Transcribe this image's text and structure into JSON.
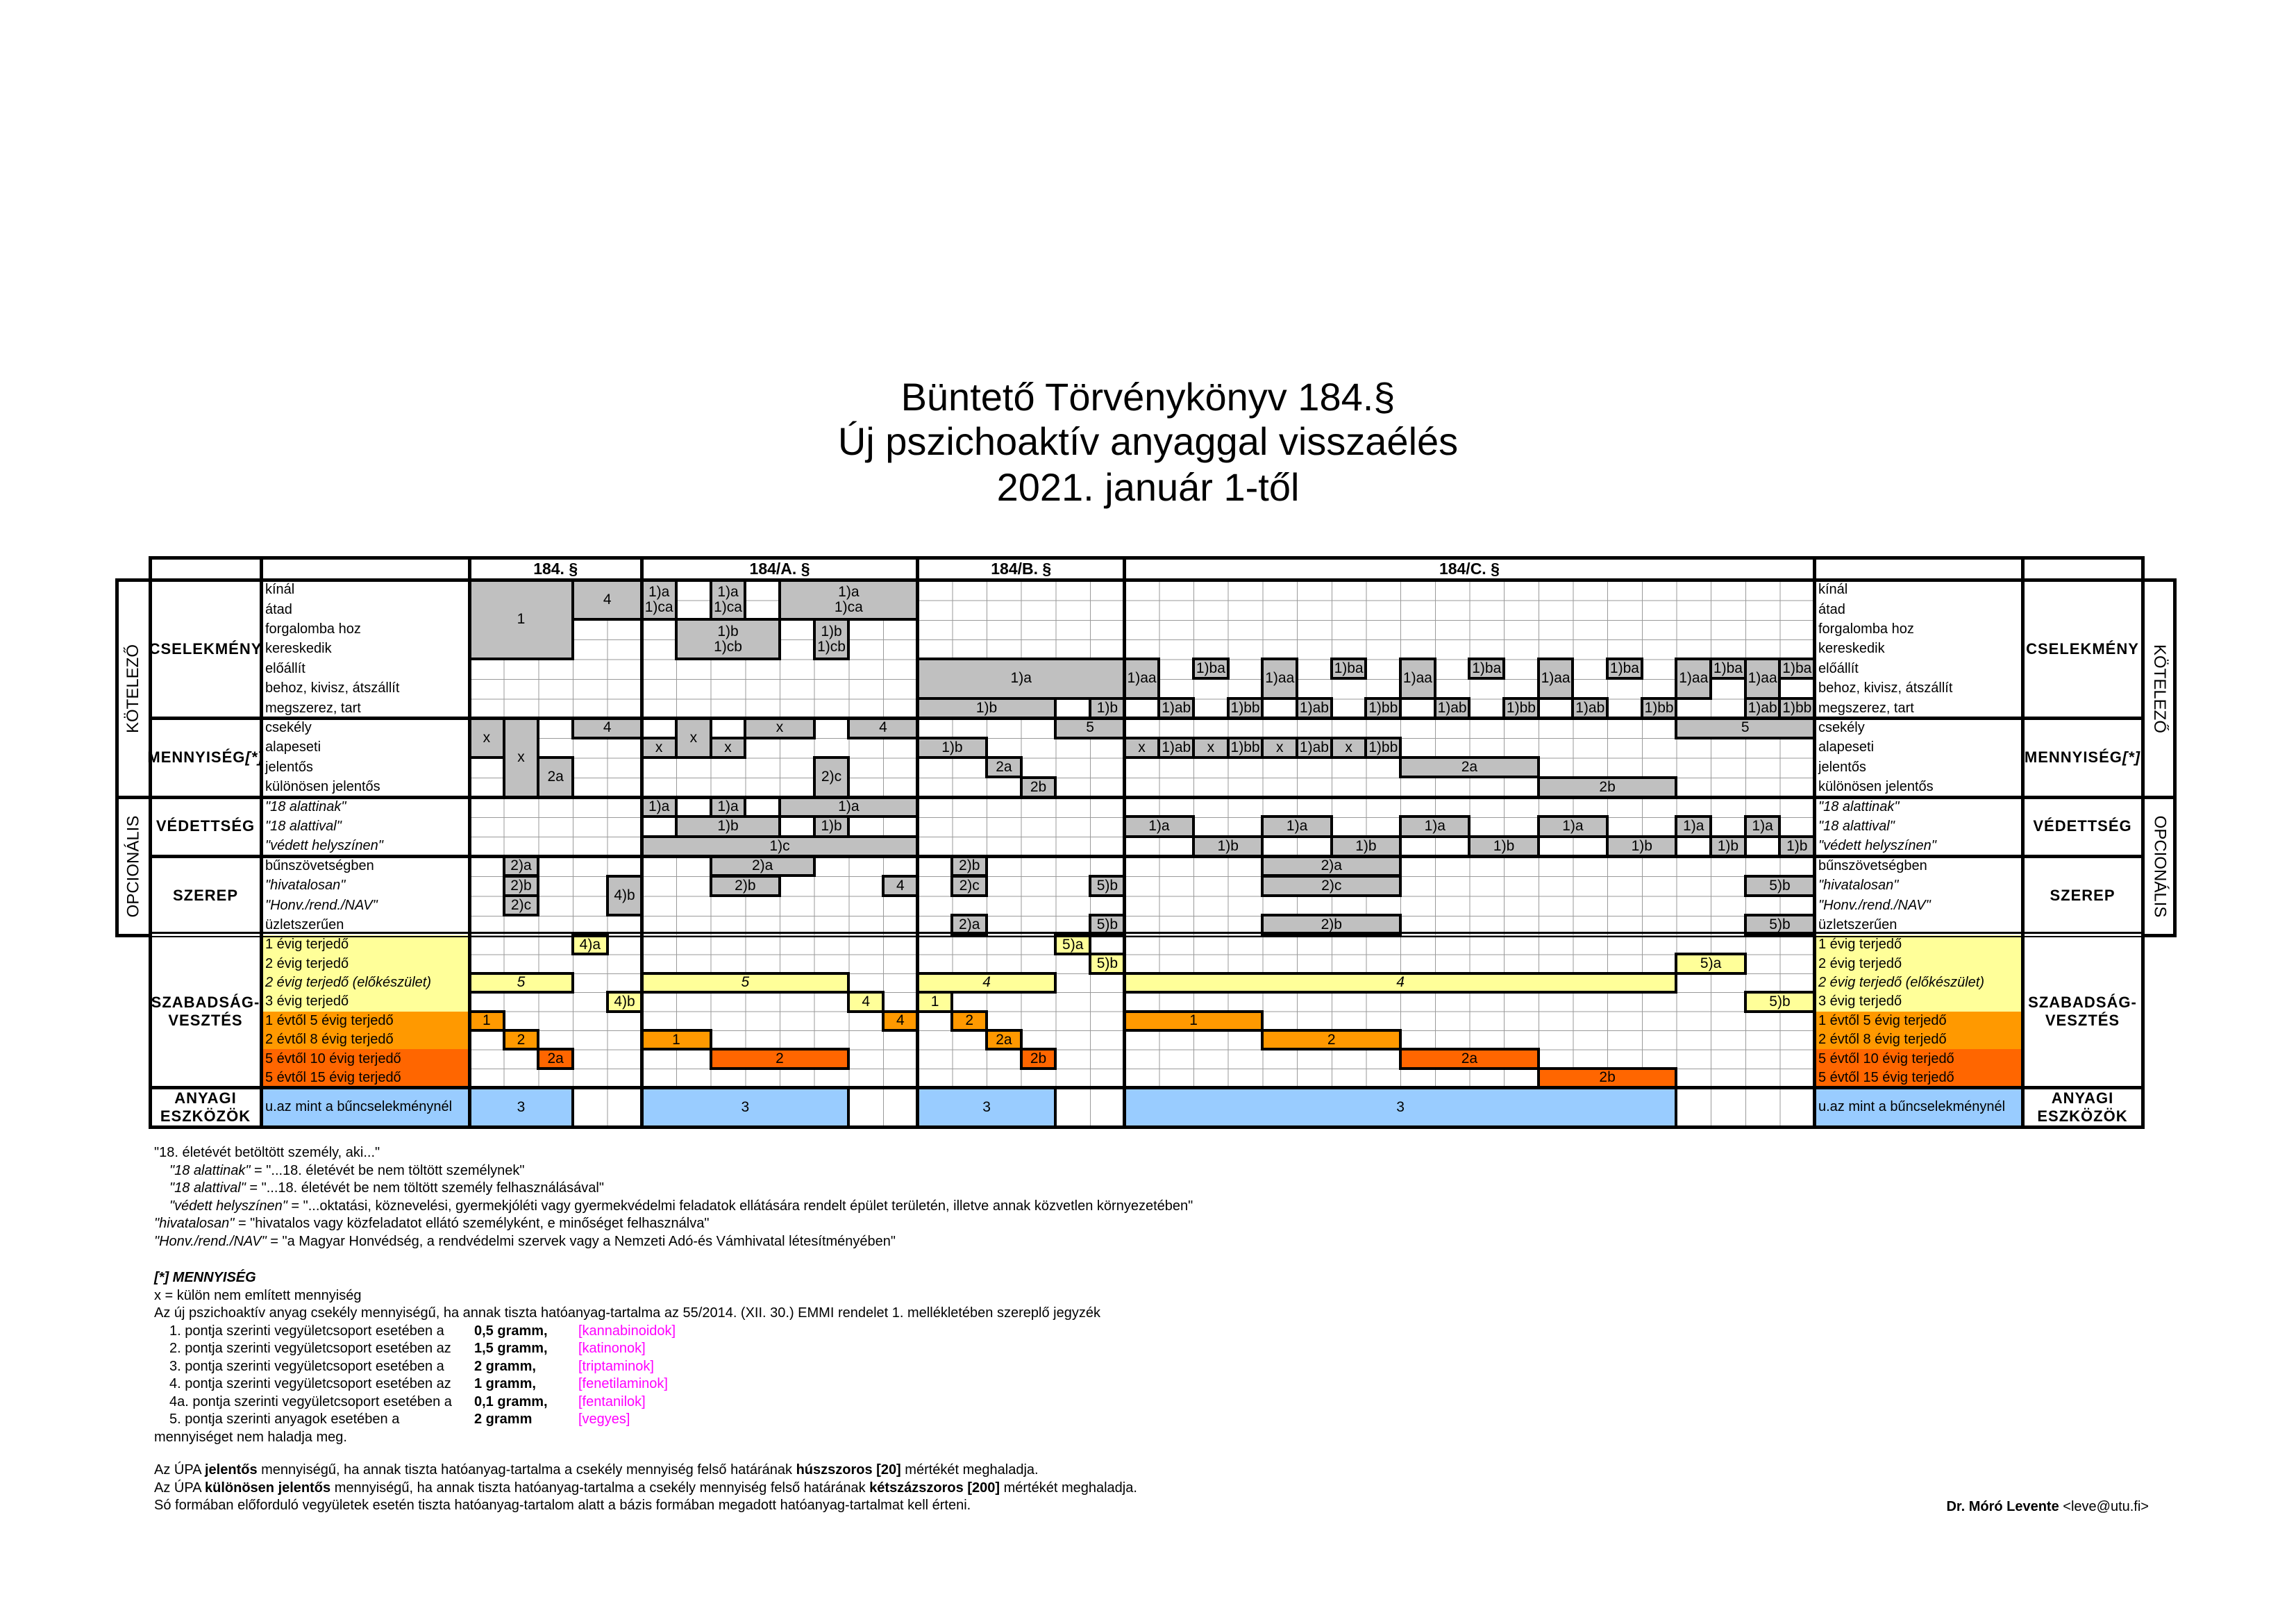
{
  "title": [
    "Büntető Törvénykönyv 184.§",
    "Új pszichoaktív anyaggal visszaélés",
    "2021. január 1-től"
  ],
  "sections": [
    {
      "name": "184. §",
      "cols": 5
    },
    {
      "name": "184/A. §",
      "cols": 8
    },
    {
      "name": "184/B. §",
      "cols": 6
    },
    {
      "name": "184/C. §",
      "cols": 20
    }
  ],
  "side_labels": {
    "mandatory": "KÖTELEZŐ",
    "optional": "OPCIONÁLIS"
  },
  "groups": [
    {
      "label": "CSELEKMÉNY",
      "suffix": "",
      "rows": [
        {
          "t": "kínál"
        },
        {
          "t": "átad"
        },
        {
          "t": "forgalomba hoz"
        },
        {
          "t": "kereskedik"
        },
        {
          "t": "előállít"
        },
        {
          "t": "behoz, kivisz, átszállít"
        },
        {
          "t": "megszerez, tart"
        }
      ]
    },
    {
      "label": "MENNYISÉG ",
      "suffix": "[*]",
      "rows": [
        {
          "t": "csekély"
        },
        {
          "t": "alapeseti"
        },
        {
          "t": "jelentős"
        },
        {
          "t": "különösen jelentős"
        }
      ]
    },
    {
      "label": "VÉDETTSÉG",
      "suffix": "",
      "rows": [
        {
          "t": "\"18 alattinak\"",
          "i": true
        },
        {
          "t": "\"18 alattival\"",
          "i": true
        },
        {
          "t": "\"védett helyszínen\"",
          "i": true
        }
      ]
    },
    {
      "label": "SZEREP",
      "suffix": "",
      "rows": [
        {
          "t": "bűnszövetségben"
        },
        {
          "t": "\"hivatalosan\"",
          "i": true
        },
        {
          "t": "\"Honv./rend./NAV\"",
          "i": true
        },
        {
          "t": "üzletszerűen"
        }
      ]
    },
    {
      "label": "SZABADSÁG-\nVESZTÉS",
      "suffix": "",
      "rows": [
        {
          "t": "1 évig terjedő",
          "c": "y"
        },
        {
          "t": "2 évig terjedő",
          "c": "y"
        },
        {
          "t": "2 évig terjedő (előkészület)",
          "c": "y",
          "i": true
        },
        {
          "t": "3 évig terjedő",
          "c": "y"
        },
        {
          "t": "1 évtől 5 évig terjedő",
          "c": "o"
        },
        {
          "t": "2 évtől 8 évig terjedő",
          "c": "o"
        },
        {
          "t": "5 évtől 10 évig terjedő",
          "c": "d"
        },
        {
          "t": "5 évtől 15 évig terjedő",
          "c": "d"
        }
      ]
    },
    {
      "label": "ANYAGI\nESZKÖZÖK",
      "suffix": "",
      "rows": [
        {
          "t": "u.az mint a bűncselekménynél",
          "c": "b"
        }
      ]
    }
  ],
  "colors": {
    "g": "#c0c0c0",
    "y": "#ffff99",
    "o": "#ff9900",
    "d": "#ff6600",
    "b": "#99ccff",
    "bracket": "#ff00ff"
  },
  "blocks": [
    [
      [
        "1",
        0,
        0,
        3,
        4,
        "g"
      ],
      [
        "4",
        3,
        0,
        2,
        2,
        "g"
      ],
      [
        "x",
        0,
        7,
        1,
        2,
        "g"
      ],
      [
        "x",
        1,
        7,
        1,
        4,
        "g"
      ],
      [
        "4",
        3,
        7,
        2,
        1,
        "g"
      ],
      [
        "2a",
        2,
        9,
        1,
        2,
        "g"
      ],
      [
        "2)a",
        1,
        14,
        1,
        1,
        "g"
      ],
      [
        "2)b",
        1,
        15,
        1,
        1,
        "g"
      ],
      [
        "2)c",
        1,
        16,
        1,
        1,
        "g"
      ],
      [
        "4)b",
        4,
        15,
        1,
        2,
        "g"
      ],
      [
        "4)a",
        3,
        18,
        1,
        1,
        "y"
      ],
      [
        "5",
        0,
        20,
        3,
        1,
        "yi"
      ],
      [
        "4)b",
        4,
        21,
        1,
        1,
        "y"
      ],
      [
        "1",
        0,
        22,
        1,
        1,
        "o"
      ],
      [
        "2",
        1,
        23,
        1,
        1,
        "o"
      ],
      [
        "2a",
        2,
        24,
        1,
        1,
        "d"
      ],
      [
        "3",
        0,
        26,
        3,
        1,
        "b"
      ]
    ],
    [
      [
        "1)a\n1)ca",
        0,
        0,
        1,
        2,
        "g"
      ],
      [
        "1)a\n1)ca",
        2,
        0,
        1,
        2,
        "g"
      ],
      [
        "1)a\n1)ca",
        4,
        0,
        4,
        2,
        "g"
      ],
      [
        "1)b\n1)cb",
        1,
        2,
        3,
        2,
        "g"
      ],
      [
        "1)b\n1)cb",
        5,
        2,
        1,
        2,
        "g"
      ],
      [
        "x",
        0,
        8,
        1,
        1,
        "g"
      ],
      [
        "x",
        1,
        7,
        1,
        2,
        "g"
      ],
      [
        "x",
        2,
        8,
        1,
        1,
        "g"
      ],
      [
        "x",
        3,
        7,
        2,
        1,
        "g"
      ],
      [
        "4",
        6,
        7,
        2,
        1,
        "g"
      ],
      [
        "2)c",
        5,
        9,
        1,
        2,
        "g"
      ],
      [
        "1)a",
        0,
        11,
        1,
        1,
        "g"
      ],
      [
        "1)a",
        2,
        11,
        1,
        1,
        "g"
      ],
      [
        "1)a",
        4,
        11,
        4,
        1,
        "g"
      ],
      [
        "1)b",
        1,
        12,
        3,
        1,
        "g"
      ],
      [
        "1)b",
        5,
        12,
        1,
        1,
        "g"
      ],
      [
        "1)c",
        0,
        13,
        8,
        1,
        "g"
      ],
      [
        "2)a",
        2,
        14,
        3,
        1,
        "g"
      ],
      [
        "2)b",
        2,
        15,
        2,
        1,
        "g"
      ],
      [
        "4",
        7,
        15,
        1,
        1,
        "g"
      ],
      [
        "5",
        0,
        20,
        6,
        1,
        "yi"
      ],
      [
        "4",
        6,
        21,
        1,
        1,
        "y"
      ],
      [
        "4",
        7,
        22,
        1,
        1,
        "o"
      ],
      [
        "1",
        0,
        23,
        2,
        1,
        "o"
      ],
      [
        "2",
        2,
        24,
        4,
        1,
        "d"
      ],
      [
        "3",
        0,
        26,
        6,
        1,
        "b"
      ]
    ],
    [
      [
        "1)a",
        0,
        4,
        6,
        2,
        "g"
      ],
      [
        "1)b",
        0,
        6,
        4,
        1,
        "g"
      ],
      [
        "1)b",
        5,
        6,
        1,
        1,
        "g"
      ],
      [
        "5",
        4,
        7,
        2,
        1,
        "g"
      ],
      [
        "1)b",
        0,
        8,
        2,
        1,
        "g"
      ],
      [
        "2a",
        2,
        9,
        1,
        1,
        "g"
      ],
      [
        "2b",
        3,
        10,
        1,
        1,
        "g"
      ],
      [
        "2)b",
        1,
        14,
        1,
        1,
        "g"
      ],
      [
        "2)c",
        1,
        15,
        1,
        1,
        "g"
      ],
      [
        "5)b",
        5,
        15,
        1,
        1,
        "g"
      ],
      [
        "2)a",
        1,
        17,
        1,
        1,
        "g"
      ],
      [
        "5)b",
        5,
        17,
        1,
        1,
        "g"
      ],
      [
        "5)a",
        4,
        18,
        1,
        1,
        "y"
      ],
      [
        "5)b",
        5,
        19,
        1,
        1,
        "y"
      ],
      [
        "4",
        0,
        20,
        4,
        1,
        "yi"
      ],
      [
        "1",
        0,
        21,
        1,
        1,
        "y"
      ],
      [
        "2",
        1,
        22,
        1,
        1,
        "o"
      ],
      [
        "2a",
        2,
        23,
        1,
        1,
        "o"
      ],
      [
        "2b",
        3,
        24,
        1,
        1,
        "d"
      ],
      [
        "3",
        0,
        26,
        4,
        1,
        "b"
      ]
    ],
    [
      [
        "1)aa",
        0,
        4,
        1,
        2,
        "g"
      ],
      [
        "1)ba",
        2,
        4,
        1,
        1,
        "g"
      ],
      [
        "1)aa",
        4,
        4,
        1,
        2,
        "g"
      ],
      [
        "1)ba",
        6,
        4,
        1,
        1,
        "g"
      ],
      [
        "1)aa",
        8,
        4,
        1,
        2,
        "g"
      ],
      [
        "1)ba",
        10,
        4,
        1,
        1,
        "g"
      ],
      [
        "1)aa",
        12,
        4,
        1,
        2,
        "g"
      ],
      [
        "1)ba",
        14,
        4,
        1,
        1,
        "g"
      ],
      [
        "1)aa",
        16,
        4,
        1,
        2,
        "g"
      ],
      [
        "1)ba",
        17,
        4,
        1,
        1,
        "g"
      ],
      [
        "1)aa",
        18,
        4,
        1,
        2,
        "g"
      ],
      [
        "1)ba",
        19,
        4,
        1,
        1,
        "g"
      ],
      [
        "1)ab",
        1,
        6,
        1,
        1,
        "g"
      ],
      [
        "1)bb",
        3,
        6,
        1,
        1,
        "g"
      ],
      [
        "1)ab",
        5,
        6,
        1,
        1,
        "g"
      ],
      [
        "1)bb",
        7,
        6,
        1,
        1,
        "g"
      ],
      [
        "1)ab",
        9,
        6,
        1,
        1,
        "g"
      ],
      [
        "1)bb",
        11,
        6,
        1,
        1,
        "g"
      ],
      [
        "1)ab",
        13,
        6,
        1,
        1,
        "g"
      ],
      [
        "1)bb",
        15,
        6,
        1,
        1,
        "g"
      ],
      [
        "1)ab",
        18,
        6,
        1,
        1,
        "g"
      ],
      [
        "1)bb",
        19,
        6,
        1,
        1,
        "g"
      ],
      [
        "5",
        16,
        7,
        4,
        1,
        "g"
      ],
      [
        "x",
        0,
        8,
        1,
        1,
        "g"
      ],
      [
        "1)ab",
        1,
        8,
        1,
        1,
        "g"
      ],
      [
        "x",
        2,
        8,
        1,
        1,
        "g"
      ],
      [
        "1)bb",
        3,
        8,
        1,
        1,
        "g"
      ],
      [
        "x",
        4,
        8,
        1,
        1,
        "g"
      ],
      [
        "1)ab",
        5,
        8,
        1,
        1,
        "g"
      ],
      [
        "x",
        6,
        8,
        1,
        1,
        "g"
      ],
      [
        "1)bb",
        7,
        8,
        1,
        1,
        "g"
      ],
      [
        "2a",
        8,
        9,
        4,
        1,
        "g"
      ],
      [
        "2b",
        12,
        10,
        4,
        1,
        "g"
      ],
      [
        "1)a",
        0,
        12,
        2,
        1,
        "g"
      ],
      [
        "1)b",
        2,
        13,
        2,
        1,
        "g"
      ],
      [
        "1)a",
        4,
        12,
        2,
        1,
        "g"
      ],
      [
        "1)b",
        6,
        13,
        2,
        1,
        "g"
      ],
      [
        "1)a",
        8,
        12,
        2,
        1,
        "g"
      ],
      [
        "1)b",
        10,
        13,
        2,
        1,
        "g"
      ],
      [
        "1)a",
        12,
        12,
        2,
        1,
        "g"
      ],
      [
        "1)b",
        14,
        13,
        2,
        1,
        "g"
      ],
      [
        "1)a",
        16,
        12,
        1,
        1,
        "g"
      ],
      [
        "1)b",
        17,
        13,
        1,
        1,
        "g"
      ],
      [
        "1)a",
        18,
        12,
        1,
        1,
        "g"
      ],
      [
        "1)b",
        19,
        13,
        1,
        1,
        "g"
      ],
      [
        "2)a",
        4,
        14,
        4,
        1,
        "g"
      ],
      [
        "2)c",
        4,
        15,
        4,
        1,
        "g"
      ],
      [
        "2)b",
        4,
        17,
        4,
        1,
        "g"
      ],
      [
        "5)b",
        18,
        15,
        2,
        1,
        "g"
      ],
      [
        "5)b",
        18,
        17,
        2,
        1,
        "g"
      ],
      [
        "5)a",
        16,
        19,
        2,
        1,
        "y"
      ],
      [
        "4",
        0,
        20,
        16,
        1,
        "yi"
      ],
      [
        "5)b",
        18,
        21,
        2,
        1,
        "y"
      ],
      [
        "1",
        0,
        22,
        4,
        1,
        "o"
      ],
      [
        "2",
        4,
        23,
        4,
        1,
        "o"
      ],
      [
        "2a",
        8,
        24,
        4,
        1,
        "d"
      ],
      [
        "2b",
        12,
        25,
        4,
        1,
        "d"
      ],
      [
        "3",
        0,
        26,
        16,
        1,
        "b"
      ]
    ]
  ],
  "notes": {
    "defs": [
      {
        "indent": false,
        "seg": [
          {
            "t": "\"18. életévét betöltött személy, aki...\""
          }
        ]
      },
      {
        "indent": true,
        "seg": [
          {
            "t": "\"18 alattinak\"",
            "s": "it"
          },
          {
            "t": " = \"...18. életévét be nem töltött személynek\""
          }
        ]
      },
      {
        "indent": true,
        "seg": [
          {
            "t": "\"18 alattival\"",
            "s": "it"
          },
          {
            "t": " = \"...18. életévét be nem töltött személy felhasználásával\""
          }
        ]
      },
      {
        "indent": true,
        "seg": [
          {
            "t": "\"védett helyszínen\"",
            "s": "it"
          },
          {
            "t": " = \"...oktatási, köznevelési, gyermekjóléti vagy gyermekvédelmi feladatok ellátására rendelt épület területén, illetve annak közvetlen környezetében\""
          }
        ]
      },
      {
        "indent": false,
        "seg": [
          {
            "t": "\"hivatalosan\"",
            "s": "it"
          },
          {
            "t": " = \"hivatalos vagy közfeladatot ellátó személyként, e minőséget felhasználva\""
          }
        ]
      },
      {
        "indent": false,
        "seg": [
          {
            "t": "\"Honv./rend./NAV\"",
            "s": "it"
          },
          {
            "t": " = \"a Magyar Honvédség, a rendvédelmi szervek vagy a Nemzeti Adó-és Vámhivatal létesítményében\""
          }
        ]
      }
    ],
    "quantity": {
      "heading": "[*] MENNYISÉG",
      "x_note": "x = külön nem említett mennyiség",
      "intro": "Az új pszichoaktív anyag csekély mennyiségű, ha annak tiszta hatóanyag-tartalma az 55/2014. (XII. 30.) EMMI rendelet 1. mellékletében szereplő jegyzék",
      "items": [
        {
          "text": "1. pontja szerinti vegyületcsoport esetében a",
          "amount": "0,5 gramm,",
          "group": "[kannabinoidok]"
        },
        {
          "text": "2. pontja szerinti vegyületcsoport esetében az",
          "amount": "1,5 gramm,",
          "group": "[katinonok]"
        },
        {
          "text": "3. pontja szerinti vegyületcsoport esetében a",
          "amount": "2 gramm,",
          "group": "[triptaminok]"
        },
        {
          "text": "4. pontja szerinti vegyületcsoport esetében az",
          "amount": "1 gramm,",
          "group": "[fenetilaminok]"
        },
        {
          "text": "4a. pontja szerinti vegyületcsoport esetében a",
          "amount": "0,1 gramm,",
          "group": "[fentanilok]"
        },
        {
          "text": "5. pontja szerinti anyagok esetében a",
          "amount": "2 gramm",
          "group": "[vegyes]"
        }
      ],
      "outro": "mennyiséget nem haladja meg."
    },
    "upa": [
      {
        "seg": [
          {
            "t": "Az ÚPA "
          },
          {
            "t": "jelentős",
            "s": "bd"
          },
          {
            "t": " mennyiségű, ha annak tiszta hatóanyag-tartalma a csekély mennyiség felső határának "
          },
          {
            "t": "húszszoros [20]",
            "s": "bd"
          },
          {
            "t": " mértékét meghaladja."
          }
        ]
      },
      {
        "seg": [
          {
            "t": "Az ÚPA "
          },
          {
            "t": "különösen jelentős",
            "s": "bd"
          },
          {
            "t": " mennyiségű, ha annak tiszta hatóanyag-tartalma a csekély mennyiség felső határának "
          },
          {
            "t": "kétszázszoros [200]",
            "s": "bd"
          },
          {
            "t": " mértékét meghaladja."
          }
        ]
      },
      {
        "seg": [
          {
            "t": "Só formában előforduló vegyületek esetén tiszta hatóanyag-tartalom alatt a bázis formában megadott hatóanyag-tartalmat kell érteni."
          }
        ]
      }
    ]
  },
  "author": {
    "name": "Dr. Móró Levente",
    "email": " <leve@utu.fi>"
  }
}
